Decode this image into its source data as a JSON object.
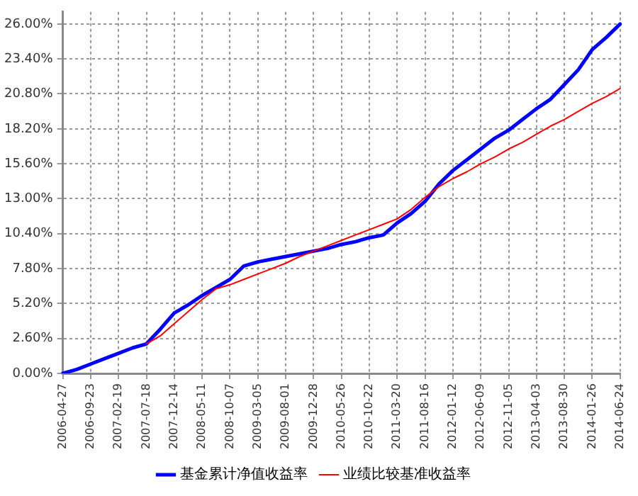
{
  "chart_data": {
    "type": "line",
    "categories": [
      "2006-04-27",
      null,
      "2006-09-23",
      null,
      "2007-02-19",
      null,
      "2007-07-18",
      null,
      "2007-12-14",
      null,
      "2008-05-11",
      null,
      "2008-10-07",
      null,
      "2009-03-05",
      null,
      "2009-08-01",
      null,
      "2009-12-28",
      null,
      "2010-05-26",
      null,
      "2010-10-22",
      null,
      "2011-03-20",
      null,
      "2011-08-16",
      null,
      "2012-01-12",
      null,
      "2012-06-09",
      null,
      "2012-11-05",
      null,
      "2013-04-03",
      null,
      "2013-08-30",
      null,
      "2014-01-26",
      null,
      "2014-06-24"
    ],
    "series": [
      {
        "name": "基金累计净值收益率",
        "color": "#0000ff",
        "values": [
          0,
          0.3,
          0.7,
          1.1,
          1.5,
          1.9,
          2.2,
          3.3,
          4.5,
          5.1,
          5.8,
          6.4,
          7.0,
          8.0,
          8.3,
          8.5,
          8.7,
          8.9,
          9.1,
          9.3,
          9.6,
          9.8,
          10.1,
          10.3,
          11.2,
          11.9,
          12.8,
          14.1,
          15.1,
          15.9,
          16.7,
          17.5,
          18.1,
          18.9,
          19.7,
          20.4,
          21.5,
          22.6,
          24.1,
          25.0,
          26.0
        ]
      },
      {
        "name": "业绩比较基准收益率",
        "color": "#ff0000",
        "values": [
          null,
          null,
          null,
          null,
          null,
          null,
          2.2,
          2.8,
          3.7,
          4.6,
          5.5,
          6.3,
          6.6,
          7.0,
          7.4,
          7.8,
          8.2,
          8.7,
          9.1,
          9.5,
          9.9,
          10.3,
          10.7,
          11.1,
          11.5,
          12.2,
          13.1,
          13.9,
          14.5,
          15.0,
          15.6,
          16.1,
          16.7,
          17.2,
          17.8,
          18.4,
          18.9,
          19.5,
          20.1,
          20.6,
          21.2
        ]
      }
    ],
    "ylim": [
      0,
      26.9
    ],
    "yticks": [
      {
        "value": 0,
        "label": "0.00%"
      },
      {
        "value": 2.6,
        "label": "2.60%"
      },
      {
        "value": 5.2,
        "label": "5.20%"
      },
      {
        "value": 7.8,
        "label": "7.80%"
      },
      {
        "value": 10.4,
        "label": "10.40%"
      },
      {
        "value": 13,
        "label": "13.00%"
      },
      {
        "value": 15.6,
        "label": "15.60%"
      },
      {
        "value": 18.2,
        "label": "18.20%"
      },
      {
        "value": 20.8,
        "label": "20.80%"
      },
      {
        "value": 23.4,
        "label": "23.40%"
      },
      {
        "value": 26,
        "label": "26.00%"
      }
    ],
    "grid": true,
    "legend": "bottom",
    "marker": "none",
    "line_style": "solid"
  }
}
